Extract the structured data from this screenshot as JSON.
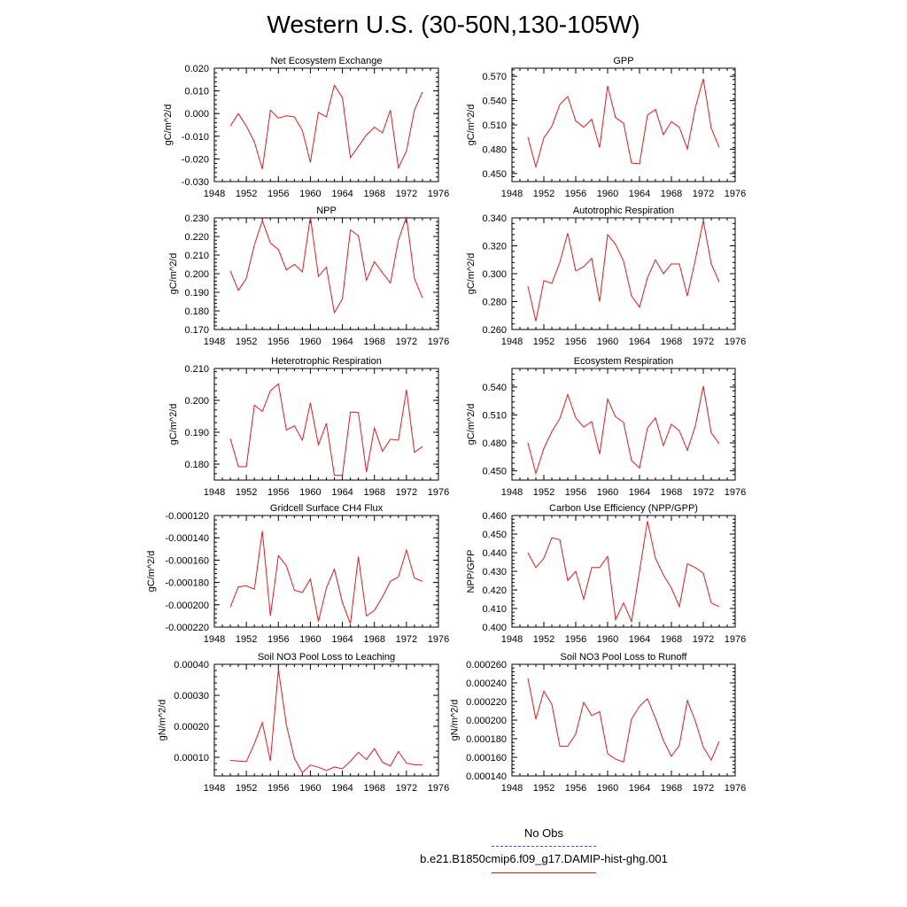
{
  "page": {
    "title": "Western U.S. (30-50N,130-105W)",
    "series_color": "#e41a1c",
    "legend": [
      {
        "label": "No Obs",
        "color": "#4a4af0",
        "style": "dashed"
      },
      {
        "label": "b.e21.B1850cmip6.f09_g17.DAMIP-hist-ghg.001",
        "color": "#e41a1c",
        "style": "solid"
      }
    ]
  },
  "chart_data": [
    {
      "type": "line",
      "title": "Net Ecosystem Exchange",
      "ylabel": "gC/m^2/d",
      "x": [
        1950,
        1951,
        1952,
        1953,
        1954,
        1955,
        1956,
        1957,
        1958,
        1959,
        1960,
        1961,
        1962,
        1963,
        1964,
        1965,
        1966,
        1967,
        1968,
        1969,
        1970,
        1971,
        1972,
        1973,
        1974
      ],
      "y": [
        -0.0055,
        0.0,
        -0.0055,
        -0.0125,
        -0.0245,
        0.0015,
        -0.002,
        -0.001,
        -0.0015,
        -0.0075,
        -0.0215,
        0.0005,
        -0.0015,
        0.0125,
        0.007,
        -0.0195,
        -0.0145,
        -0.0095,
        -0.006,
        -0.0085,
        0.0015,
        -0.024,
        -0.0165,
        0.0015,
        0.0095
      ],
      "xlim": [
        1948,
        1976
      ],
      "ylim": [
        -0.03,
        0.02
      ],
      "xticks": [
        "1948",
        "1952",
        "1956",
        "1960",
        "1964",
        "1968",
        "1972",
        "1976"
      ],
      "yticks": [
        "-0.030",
        "-0.020",
        "-0.010",
        "0.000",
        "0.010",
        "0.020"
      ]
    },
    {
      "type": "line",
      "title": "GPP",
      "ylabel": "gC/m^2/d",
      "x": [
        1950,
        1951,
        1952,
        1953,
        1954,
        1955,
        1956,
        1957,
        1958,
        1959,
        1960,
        1961,
        1962,
        1963,
        1964,
        1965,
        1966,
        1967,
        1968,
        1969,
        1970,
        1971,
        1972,
        1973,
        1974
      ],
      "y": [
        0.495,
        0.458,
        0.494,
        0.508,
        0.535,
        0.545,
        0.515,
        0.507,
        0.517,
        0.482,
        0.558,
        0.519,
        0.512,
        0.463,
        0.462,
        0.522,
        0.529,
        0.498,
        0.514,
        0.507,
        0.48,
        0.531,
        0.567,
        0.506,
        0.482
      ],
      "xlim": [
        1948,
        1976
      ],
      "ylim": [
        0.44,
        0.58
      ],
      "xticks": [
        "1948",
        "1952",
        "1956",
        "1960",
        "1964",
        "1968",
        "1972",
        "1976"
      ],
      "yticks": [
        "0.450",
        "0.480",
        "0.510",
        "0.540",
        "0.570"
      ]
    },
    {
      "type": "line",
      "title": "NPP",
      "ylabel": "gC/m^2/d",
      "x": [
        1950,
        1951,
        1952,
        1953,
        1954,
        1955,
        1956,
        1957,
        1958,
        1959,
        1960,
        1961,
        1962,
        1963,
        1964,
        1965,
        1966,
        1967,
        1968,
        1969,
        1970,
        1971,
        1972,
        1973,
        1974
      ],
      "y": [
        0.2015,
        0.191,
        0.1975,
        0.2155,
        0.2285,
        0.2165,
        0.213,
        0.202,
        0.205,
        0.201,
        0.2305,
        0.1985,
        0.2035,
        0.179,
        0.1865,
        0.2235,
        0.2205,
        0.1965,
        0.2065,
        0.2005,
        0.195,
        0.218,
        0.2305,
        0.1975,
        0.187
      ],
      "xlim": [
        1948,
        1976
      ],
      "ylim": [
        0.17,
        0.23
      ],
      "xticks": [
        "1948",
        "1952",
        "1956",
        "1960",
        "1964",
        "1968",
        "1972",
        "1976"
      ],
      "yticks": [
        "0.170",
        "0.180",
        "0.190",
        "0.200",
        "0.210",
        "0.220",
        "0.230"
      ]
    },
    {
      "type": "line",
      "title": "Autotrophic Respiration",
      "ylabel": "gC/m^2/d",
      "x": [
        1950,
        1951,
        1952,
        1953,
        1954,
        1955,
        1956,
        1957,
        1958,
        1959,
        1960,
        1961,
        1962,
        1963,
        1964,
        1965,
        1966,
        1967,
        1968,
        1969,
        1970,
        1971,
        1972,
        1973,
        1974
      ],
      "y": [
        0.291,
        0.266,
        0.295,
        0.293,
        0.308,
        0.329,
        0.302,
        0.305,
        0.311,
        0.28,
        0.328,
        0.321,
        0.309,
        0.284,
        0.276,
        0.297,
        0.31,
        0.3,
        0.307,
        0.307,
        0.284,
        0.31,
        0.338,
        0.307,
        0.294
      ],
      "xlim": [
        1948,
        1976
      ],
      "ylim": [
        0.26,
        0.34
      ],
      "xticks": [
        "1948",
        "1952",
        "1956",
        "1960",
        "1964",
        "1968",
        "1972",
        "1976"
      ],
      "yticks": [
        "0.260",
        "0.280",
        "0.300",
        "0.320",
        "0.340"
      ]
    },
    {
      "type": "line",
      "title": "Heterotrophic Respiration",
      "ylabel": "gC/m^2/d",
      "x": [
        1950,
        1951,
        1952,
        1953,
        1954,
        1955,
        1956,
        1957,
        1958,
        1959,
        1960,
        1961,
        1962,
        1963,
        1964,
        1965,
        1966,
        1967,
        1968,
        1969,
        1970,
        1971,
        1972,
        1973,
        1974
      ],
      "y": [
        0.188,
        0.1792,
        0.1792,
        0.1985,
        0.1965,
        0.203,
        0.2052,
        0.1907,
        0.192,
        0.1875,
        0.1992,
        0.186,
        0.1928,
        0.1765,
        0.1765,
        0.1963,
        0.1962,
        0.1775,
        0.1913,
        0.184,
        0.1878,
        0.1875,
        0.2033,
        0.1837,
        0.1855
      ],
      "xlim": [
        1948,
        1976
      ],
      "ylim": [
        0.175,
        0.21
      ],
      "xticks": [
        "1948",
        "1952",
        "1956",
        "1960",
        "1964",
        "1968",
        "1972",
        "1976"
      ],
      "yticks": [
        "0.180",
        "0.190",
        "0.200",
        "0.210"
      ]
    },
    {
      "type": "line",
      "title": "Ecosystem Respiration",
      "ylabel": "gC/m^2/d",
      "x": [
        1950,
        1951,
        1952,
        1953,
        1954,
        1955,
        1956,
        1957,
        1958,
        1959,
        1960,
        1961,
        1962,
        1963,
        1964,
        1965,
        1966,
        1967,
        1968,
        1969,
        1970,
        1971,
        1972,
        1973,
        1974
      ],
      "y": [
        0.48,
        0.447,
        0.474,
        0.492,
        0.506,
        0.532,
        0.507,
        0.497,
        0.503,
        0.468,
        0.527,
        0.508,
        0.502,
        0.461,
        0.453,
        0.496,
        0.507,
        0.477,
        0.5,
        0.493,
        0.472,
        0.498,
        0.541,
        0.491,
        0.479
      ],
      "xlim": [
        1948,
        1976
      ],
      "ylim": [
        0.44,
        0.56
      ],
      "xticks": [
        "1948",
        "1952",
        "1956",
        "1960",
        "1964",
        "1968",
        "1972",
        "1976"
      ],
      "yticks": [
        "0.450",
        "0.480",
        "0.510",
        "0.540"
      ]
    },
    {
      "type": "line",
      "title": "Gridcell Surface CH4 Flux",
      "ylabel": "gC/m^2/d",
      "x": [
        1950,
        1951,
        1952,
        1953,
        1954,
        1955,
        1956,
        1957,
        1958,
        1959,
        1960,
        1961,
        1962,
        1963,
        1964,
        1965,
        1966,
        1967,
        1968,
        1969,
        1970,
        1971,
        1972,
        1973,
        1974
      ],
      "y": [
        -0.000202,
        -0.000184,
        -0.000183,
        -0.000186,
        -0.000134,
        -0.00021,
        -0.000156,
        -0.000165,
        -0.000187,
        -0.000189,
        -0.000177,
        -0.000215,
        -0.000185,
        -0.000168,
        -0.000198,
        -0.000217,
        -0.000157,
        -0.00021,
        -0.000205,
        -0.000193,
        -0.000179,
        -0.000175,
        -0.000151,
        -0.000176,
        -0.000179
      ],
      "xlim": [
        1948,
        1976
      ],
      "ylim": [
        -0.00022,
        -0.00012
      ],
      "xticks": [
        "1948",
        "1952",
        "1956",
        "1960",
        "1964",
        "1968",
        "1972",
        "1976"
      ],
      "yticks": [
        "-0.000220",
        "-0.000200",
        "-0.000180",
        "-0.000160",
        "-0.000140",
        "-0.000120"
      ]
    },
    {
      "type": "line",
      "title": "Carbon Use Efficiency (NPP/GPP)",
      "ylabel": "NPP/GPP",
      "x": [
        1950,
        1951,
        1952,
        1953,
        1954,
        1955,
        1956,
        1957,
        1958,
        1959,
        1960,
        1961,
        1962,
        1963,
        1964,
        1965,
        1966,
        1967,
        1968,
        1969,
        1970,
        1971,
        1972,
        1973,
        1974
      ],
      "y": [
        0.44,
        0.432,
        0.437,
        0.448,
        0.447,
        0.425,
        0.43,
        0.415,
        0.432,
        0.432,
        0.438,
        0.404,
        0.413,
        0.403,
        0.43,
        0.457,
        0.437,
        0.428,
        0.421,
        0.411,
        0.434,
        0.432,
        0.429,
        0.413,
        0.411
      ],
      "xlim": [
        1948,
        1976
      ],
      "ylim": [
        0.4,
        0.46
      ],
      "xticks": [
        "1948",
        "1952",
        "1956",
        "1960",
        "1964",
        "1968",
        "1972",
        "1976"
      ],
      "yticks": [
        "0.400",
        "0.410",
        "0.420",
        "0.430",
        "0.440",
        "0.450",
        "0.460"
      ]
    },
    {
      "type": "line",
      "title": "Soil NO3 Pool Loss to Leaching",
      "ylabel": "gN/m^2/d",
      "x": [
        1950,
        1951,
        1952,
        1953,
        1954,
        1955,
        1956,
        1957,
        1958,
        1959,
        1960,
        1961,
        1962,
        1963,
        1964,
        1965,
        1966,
        1967,
        1968,
        1969,
        1970,
        1971,
        1972,
        1973,
        1974
      ],
      "y": [
        9e-05,
        8.8e-05,
        8.6e-05,
        0.000144,
        0.000212,
        8.8e-05,
        0.000383,
        0.000205,
        9.6e-05,
        5e-05,
        7.5e-05,
        6.8e-05,
        5.7e-05,
        6.9e-05,
        6.3e-05,
        8.7e-05,
        0.000116,
        9.3e-05,
        0.000128,
        8.4e-05,
        7.2e-05,
        0.000119,
        8.1e-05,
        7.6e-05,
        7.5e-05
      ],
      "xlim": [
        1948,
        1976
      ],
      "ylim": [
        4e-05,
        0.0004
      ],
      "xticks": [
        "1948",
        "1952",
        "1956",
        "1960",
        "1964",
        "1968",
        "1972",
        "1976"
      ],
      "yticks": [
        "0.00010",
        "0.00020",
        "0.00030",
        "0.00040"
      ]
    },
    {
      "type": "line",
      "title": "Soil NO3 Pool Loss to Runoff",
      "ylabel": "gN/m^2/d",
      "x": [
        1950,
        1951,
        1952,
        1953,
        1954,
        1955,
        1956,
        1957,
        1958,
        1959,
        1960,
        1961,
        1962,
        1963,
        1964,
        1965,
        1966,
        1967,
        1968,
        1969,
        1970,
        1971,
        1972,
        1973,
        1974
      ],
      "y": [
        0.000245,
        0.000201,
        0.000231,
        0.000217,
        0.000172,
        0.000172,
        0.000185,
        0.000219,
        0.000205,
        0.000209,
        0.000164,
        0.000158,
        0.000155,
        0.000201,
        0.000215,
        0.000223,
        0.000202,
        0.000178,
        0.000161,
        0.000173,
        0.000221,
        0.000199,
        0.000171,
        0.000157,
        0.000177
      ],
      "xlim": [
        1948,
        1976
      ],
      "ylim": [
        0.00014,
        0.00026
      ],
      "xticks": [
        "1948",
        "1952",
        "1956",
        "1960",
        "1964",
        "1968",
        "1972",
        "1976"
      ],
      "yticks": [
        "0.000140",
        "0.000160",
        "0.000180",
        "0.000200",
        "0.000220",
        "0.000240",
        "0.000260"
      ]
    }
  ]
}
